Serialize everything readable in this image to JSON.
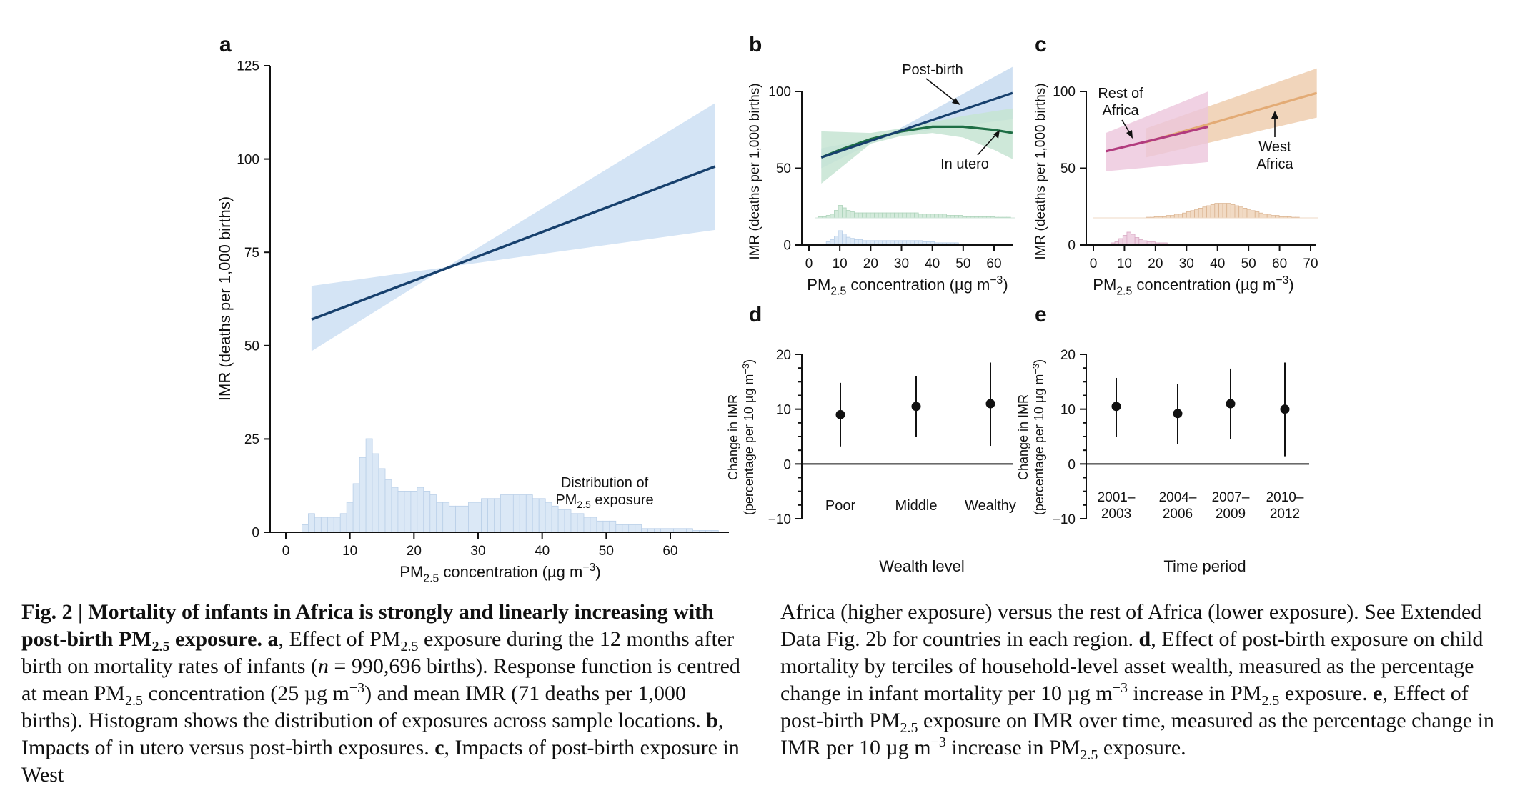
{
  "chart_data": [
    {
      "panel": "a",
      "type": "line",
      "ylabel": "IMR (deaths per 1,000 births)",
      "xlabel_main": "PM",
      "xlabel_sub": "2.5",
      "xlabel_rest": " concentration (µg m",
      "xlabel_sup": "−3",
      "xlabel_end": ")",
      "xlim": [
        -3,
        70
      ],
      "ylim": [
        0,
        125
      ],
      "xticks": [
        0,
        10,
        20,
        30,
        40,
        50,
        60
      ],
      "yticks": [
        0,
        25,
        50,
        75,
        100,
        125
      ],
      "series": [
        {
          "name": "Post-birth",
          "color": "#17406d",
          "band_color": "#d4e4f5",
          "line": [
            [
              4,
              57
            ],
            [
              67,
              98
            ]
          ],
          "band_upper": [
            [
              4,
              66
            ],
            [
              25,
              71
            ],
            [
              67,
              115
            ]
          ],
          "band_lower": [
            [
              4,
              48.5
            ],
            [
              25,
              71
            ],
            [
              67,
              81
            ]
          ]
        }
      ],
      "histogram": {
        "color": "#dbe8f6",
        "stroke": "#b9cfe8",
        "x_start": 2.5,
        "bin_width": 1,
        "values": [
          2,
          5,
          4,
          4,
          4,
          4,
          5,
          8,
          13,
          20,
          25,
          21,
          17,
          14,
          12,
          11,
          11,
          11,
          12,
          11,
          10,
          8,
          8,
          7,
          7,
          7,
          8,
          8,
          9,
          9,
          9,
          10,
          10,
          10,
          10,
          10,
          9,
          9,
          8,
          7,
          6,
          6,
          5,
          5,
          4,
          4,
          3,
          3,
          3,
          2,
          2,
          2,
          2,
          1,
          1,
          1,
          1,
          1,
          1,
          1,
          1,
          0.5,
          0.5,
          0.5,
          0.5
        ],
        "label_line1": "Distribution of",
        "label_line2_main": "PM",
        "label_line2_sub": "2.5",
        "label_line2_rest": " exposure"
      }
    },
    {
      "panel": "b",
      "type": "line",
      "ylabel": "IMR (deaths per 1,000 births)",
      "xlim": [
        -3,
        68
      ],
      "ylim": [
        0,
        105
      ],
      "xticks": [
        0,
        10,
        20,
        30,
        40,
        50,
        60
      ],
      "yticks": [
        0,
        50,
        100
      ],
      "series": [
        {
          "name": "Post-birth",
          "color": "#17406d",
          "band_color": "#c7dbf0",
          "line": [
            [
              4,
              57
            ],
            [
              66,
              99
            ]
          ],
          "band_upper": [
            [
              4,
              63
            ],
            [
              25,
              71
            ],
            [
              66,
              116
            ]
          ],
          "band_lower": [
            [
              4,
              50
            ],
            [
              25,
              71
            ],
            [
              66,
              82
            ]
          ]
        },
        {
          "name": "In utero",
          "color": "#1e6e45",
          "band_color": "#c6e4d2",
          "line": [
            [
              4,
              57
            ],
            [
              10,
              62
            ],
            [
              20,
              69
            ],
            [
              30,
              74
            ],
            [
              40,
              77
            ],
            [
              50,
              77
            ],
            [
              60,
              75
            ],
            [
              66,
              73
            ]
          ],
          "band_upper": [
            [
              4,
              74
            ],
            [
              20,
              73
            ],
            [
              30,
              76
            ],
            [
              40,
              80
            ],
            [
              50,
              84
            ],
            [
              66,
              89
            ]
          ],
          "band_lower": [
            [
              4,
              40
            ],
            [
              20,
              66
            ],
            [
              30,
              71
            ],
            [
              40,
              73
            ],
            [
              50,
              70
            ],
            [
              60,
              62
            ],
            [
              66,
              56
            ]
          ]
        }
      ],
      "annotations": [
        "Post-birth",
        "In utero"
      ],
      "hist_green": [
        1,
        1,
        2,
        3,
        6,
        10,
        8,
        6,
        5,
        4,
        4,
        4,
        4,
        4,
        4,
        4,
        4,
        4,
        4,
        4,
        4,
        4,
        4,
        4,
        4,
        3,
        3,
        3,
        3,
        3,
        3,
        3,
        2,
        2,
        2,
        2,
        1,
        1,
        1,
        1,
        1,
        1,
        1,
        1,
        0.5,
        0.5,
        0.5,
        0.5
      ],
      "hist_blue": [
        1,
        1,
        3,
        5,
        8,
        13,
        10,
        7,
        6,
        5,
        5,
        4,
        4,
        4,
        4,
        4,
        4,
        4,
        4,
        4,
        4,
        4,
        4,
        4,
        4,
        4,
        3,
        3,
        3,
        2,
        2,
        2,
        2,
        2,
        2,
        1,
        1,
        1,
        1,
        1,
        1,
        1,
        1,
        0.5,
        0.5,
        0.5,
        0.5,
        0.5
      ]
    },
    {
      "panel": "c",
      "type": "line",
      "ylabel": "IMR (deaths per 1,000 births)",
      "xlim": [
        -3,
        73
      ],
      "ylim": [
        0,
        105
      ],
      "xticks": [
        0,
        10,
        20,
        30,
        40,
        50,
        60,
        70
      ],
      "yticks": [
        0,
        50,
        100
      ],
      "series": [
        {
          "name": "Rest of Africa",
          "color": "#b23b7e",
          "band_color": "#ecc6dc",
          "line": [
            [
              4,
              61
            ],
            [
              37,
              77
            ]
          ],
          "band_upper": [
            [
              4,
              73
            ],
            [
              37,
              100
            ]
          ],
          "band_lower": [
            [
              4,
              48
            ],
            [
              37,
              54
            ]
          ]
        },
        {
          "name": "West Africa",
          "color": "#e3ab75",
          "band_color": "#efd0b4",
          "line": [
            [
              17,
              67
            ],
            [
              72,
              99
            ]
          ],
          "band_upper": [
            [
              17,
              76
            ],
            [
              72,
              115
            ]
          ],
          "band_lower": [
            [
              17,
              57
            ],
            [
              72,
              83
            ]
          ]
        }
      ],
      "annotations": [
        "Rest of",
        "Africa",
        "West",
        "Africa"
      ],
      "hist_orange": [
        0.5,
        0.5,
        1,
        1,
        1,
        2,
        2,
        3,
        3,
        4,
        5,
        6,
        7,
        8,
        9,
        10,
        11,
        12,
        12,
        12,
        12,
        11,
        10,
        9,
        8,
        7,
        6,
        5,
        4,
        3,
        3,
        2,
        2,
        1,
        1,
        1,
        0.5,
        0.5
      ],
      "hist_pink": [
        1,
        1,
        2,
        3,
        6,
        9,
        12,
        10,
        7,
        5,
        4,
        3,
        3,
        2,
        2,
        2,
        1,
        1,
        1,
        0.5,
        0.5
      ]
    },
    {
      "panel": "d",
      "type": "scatter",
      "ylabel_line1": "Change in IMR",
      "ylabel_line2": "(percentage per 10 µg m",
      "ylabel_sup": "−3",
      "ylabel_end": ")",
      "xlabel": "Wealth level",
      "ylim": [
        -10,
        20
      ],
      "yticks": [
        -10,
        0,
        10,
        20
      ],
      "categories": [
        "Poor",
        "Middle",
        "Wealthy"
      ],
      "values": [
        9,
        10.5,
        11
      ],
      "ci_low": [
        3.2,
        5,
        3.3
      ],
      "ci_high": [
        14.8,
        16,
        18.5
      ]
    },
    {
      "panel": "e",
      "type": "scatter",
      "ylabel_line1": "Change in IMR",
      "ylabel_line2": "(percentage per 10 µg m",
      "ylabel_sup": "−3",
      "ylabel_end": ")",
      "xlabel": "Time period",
      "ylim": [
        -10,
        20
      ],
      "yticks": [
        -10,
        0,
        10,
        20
      ],
      "categories": [
        [
          "2001–",
          "2003"
        ],
        [
          "2004–",
          "2006"
        ],
        [
          "2007–",
          "2009"
        ],
        [
          "2010–",
          "2012"
        ]
      ],
      "values": [
        10.5,
        9.2,
        11,
        10
      ],
      "ci_low": [
        5,
        3.6,
        4.5,
        1.4
      ],
      "ci_high": [
        15.7,
        14.6,
        17.4,
        18.5
      ]
    }
  ],
  "caption": {
    "left": [
      {
        "t": "Fig. 2 | Mortality of infants in Africa is strongly and linearly increasing with post-birth PM",
        "b": true
      },
      {
        "t": "2.5",
        "b": true,
        "sub": true
      },
      {
        "t": " exposure. ",
        "b": true
      },
      {
        "t": "a",
        "b": true
      },
      {
        "t": ", Effect of PM"
      },
      {
        "t": "2.5",
        "sub": true
      },
      {
        "t": " exposure during the 12 months after birth on mortality rates of infants ("
      },
      {
        "t": "n",
        "i": true
      },
      {
        "t": " = 990,696 births). Response function is centred at mean PM"
      },
      {
        "t": "2.5",
        "sub": true
      },
      {
        "t": " concentration (25 µg m"
      },
      {
        "t": "−3",
        "sup": true
      },
      {
        "t": ") and mean IMR (71 deaths per 1,000 births). Histogram shows the distribution of exposures across sample locations. "
      },
      {
        "t": "b",
        "b": true
      },
      {
        "t": ", Impacts of in utero versus post-birth exposures. "
      },
      {
        "t": "c",
        "b": true
      },
      {
        "t": ", Impacts of post-birth exposure in West"
      }
    ],
    "right": [
      {
        "t": "Africa (higher exposure) versus the rest of Africa (lower exposure). See Extended Data Fig. 2b for countries in each region. "
      },
      {
        "t": "d",
        "b": true
      },
      {
        "t": ", Effect of post-birth exposure on child mortality by terciles of household-level asset wealth, measured as the percentage change in infant mortality per 10 µg m"
      },
      {
        "t": "−3",
        "sup": true
      },
      {
        "t": " increase in PM"
      },
      {
        "t": "2.5",
        "sub": true
      },
      {
        "t": " exposure. "
      },
      {
        "t": "e",
        "b": true
      },
      {
        "t": ", Effect of post-birth PM"
      },
      {
        "t": "2.5",
        "sub": true
      },
      {
        "t": " exposure on IMR over time, measured as the percentage change in IMR per 10 µg m"
      },
      {
        "t": "−3",
        "sup": true
      },
      {
        "t": " increase in PM"
      },
      {
        "t": "2.5",
        "sub": true
      },
      {
        "t": " exposure."
      }
    ]
  },
  "panel_letters": [
    "a",
    "b",
    "c",
    "d",
    "e"
  ],
  "axis_label_common": {
    "main": "PM",
    "sub": "2.5",
    "rest": " concentration (µg m",
    "sup": "−3",
    "end": ")"
  }
}
